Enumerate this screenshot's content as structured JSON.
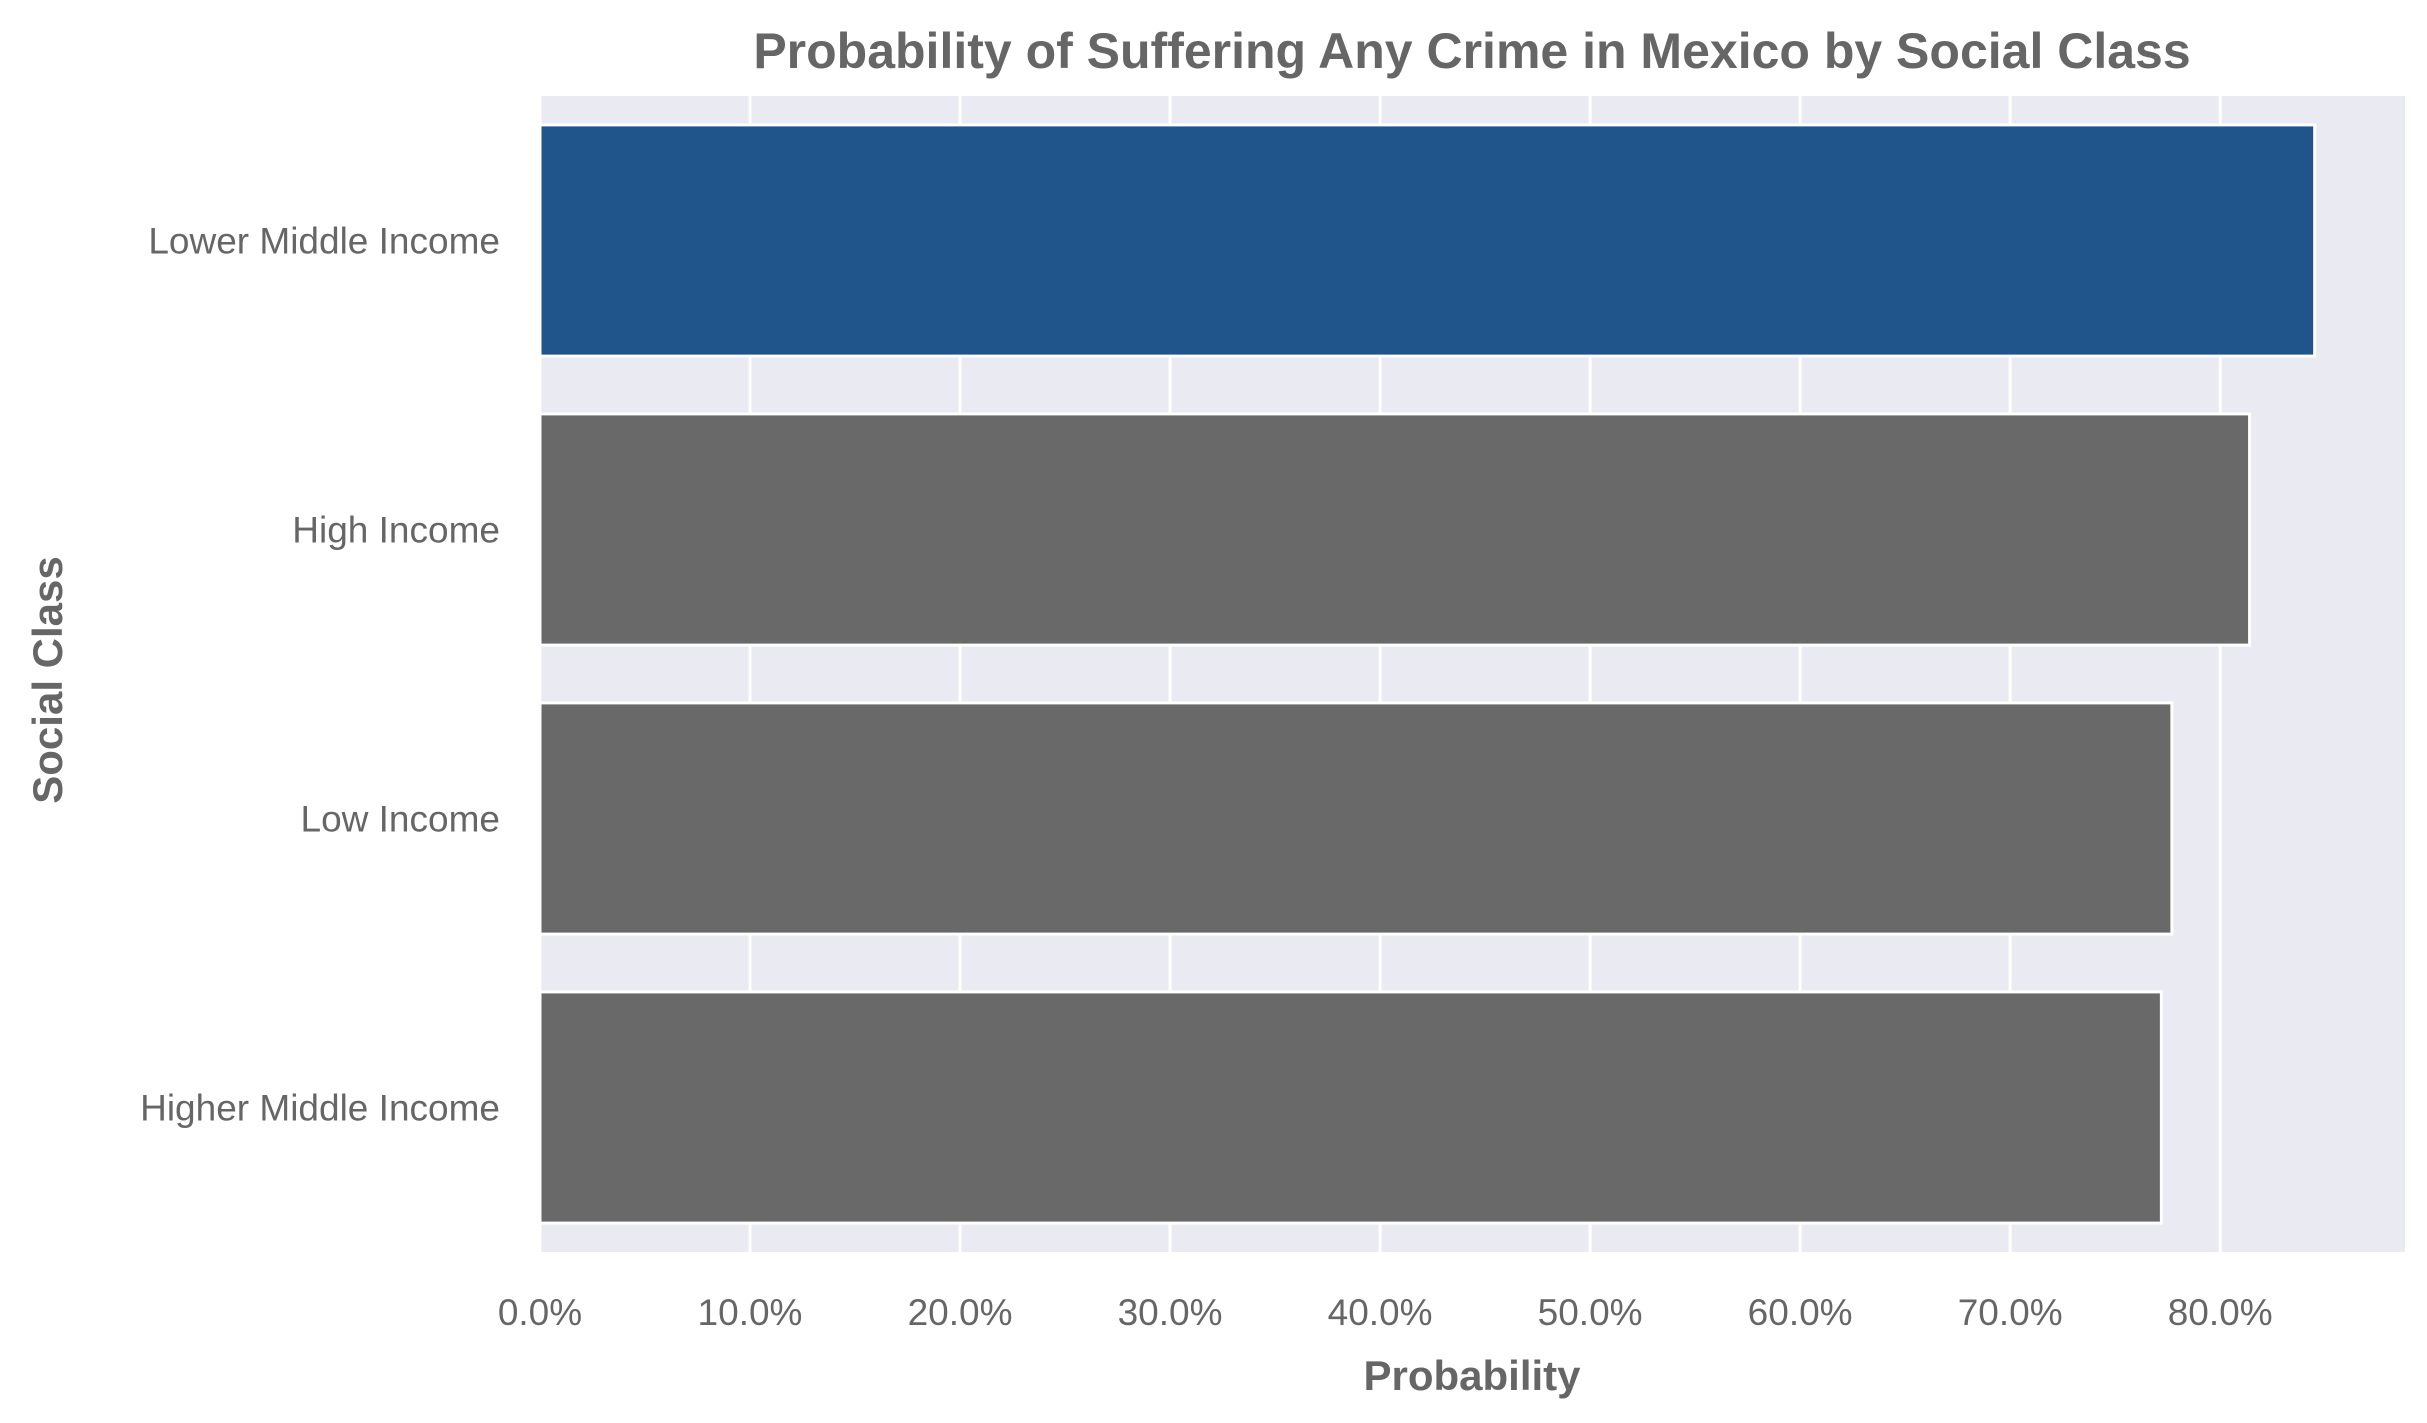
{
  "chart_data": {
    "type": "bar",
    "orientation": "horizontal",
    "title": "Probability of Suffering Any Crime in Mexico by Social Class",
    "xlabel": "Probability",
    "ylabel": "Social Class",
    "categories": [
      "Lower Middle Income",
      "High Income",
      "Low Income",
      "Higher Middle Income"
    ],
    "values": [
      0.845,
      0.814,
      0.777,
      0.772
    ],
    "bar_colors": [
      "#20558b",
      "#696969",
      "#696969",
      "#696969"
    ],
    "xlim": [
      0,
      0.888
    ],
    "xticks": [
      0,
      0.1,
      0.2,
      0.3,
      0.4,
      0.5,
      0.6,
      0.7,
      0.8
    ],
    "xtick_labels": [
      "0.0%",
      "10.0%",
      "20.0%",
      "30.0%",
      "40.0%",
      "50.0%",
      "60.0%",
      "70.0%",
      "80.0%"
    ],
    "grid": true,
    "colors": {
      "plot_background": "#eaeaf2",
      "grid": "#ffffff",
      "text": "#666666",
      "highlight": "#20558b",
      "bar": "#696969"
    }
  }
}
